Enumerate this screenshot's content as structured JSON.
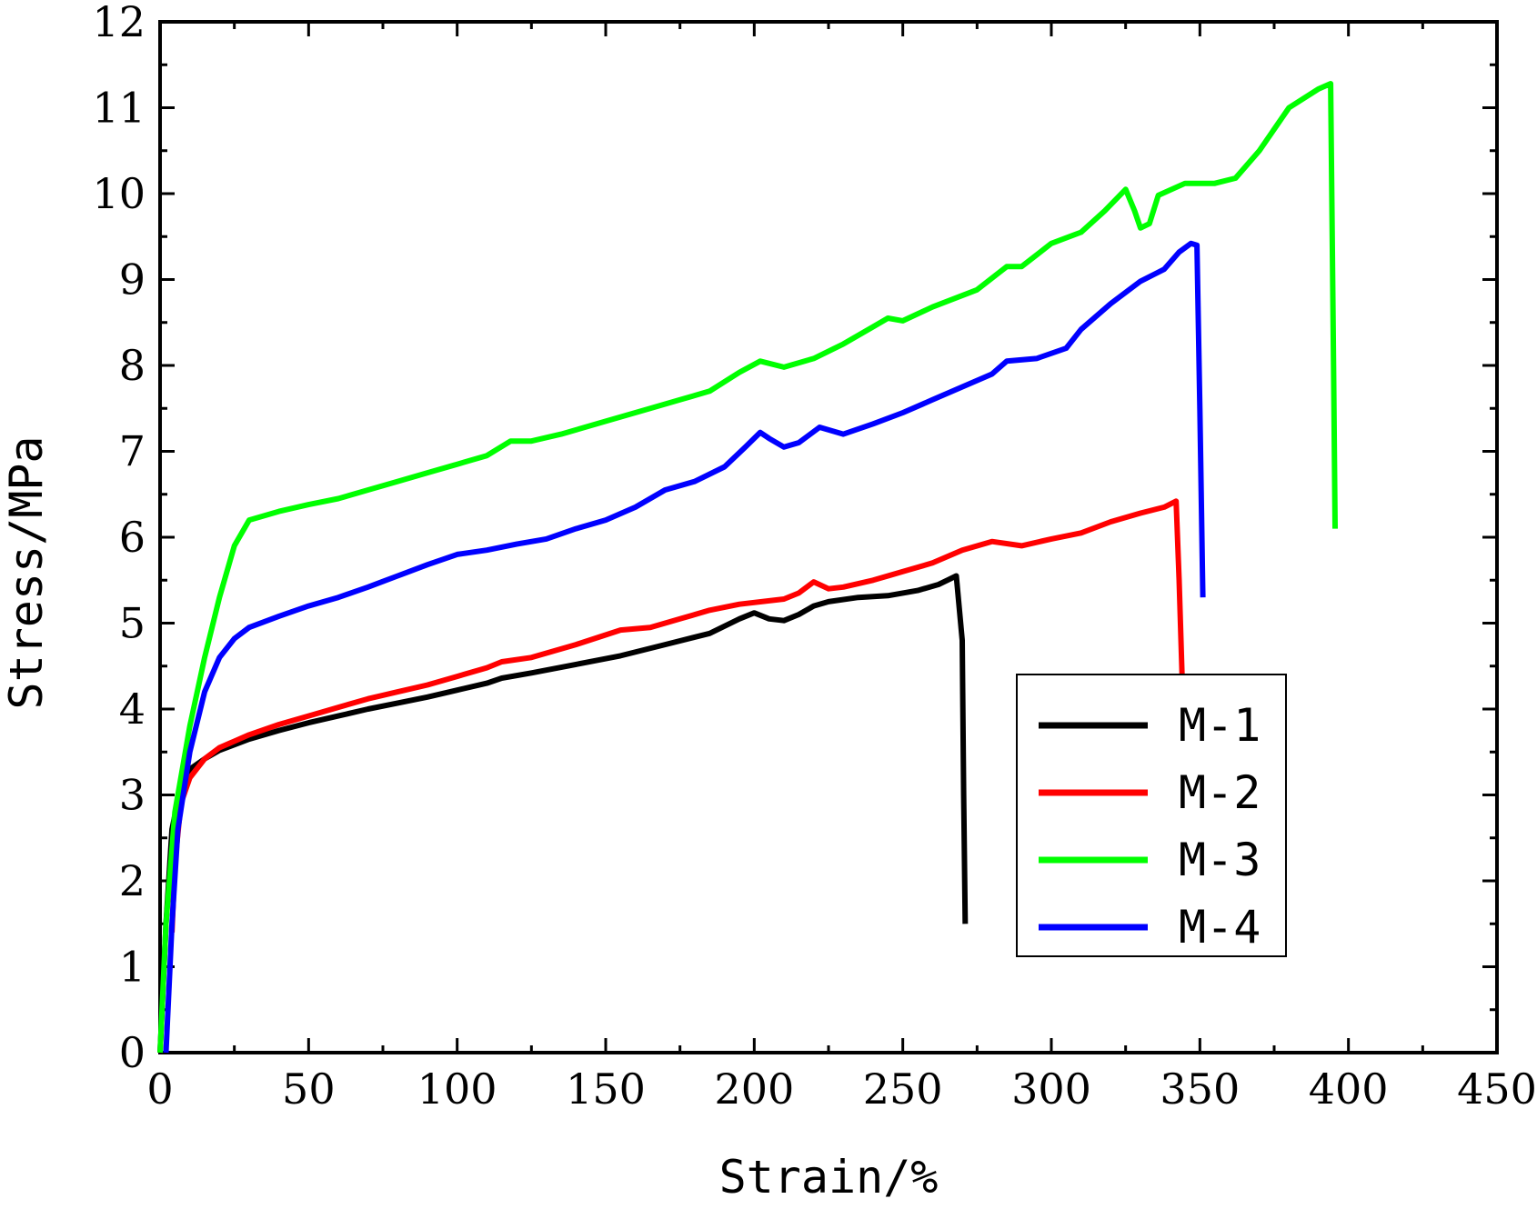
{
  "chart_data": {
    "type": "line",
    "title": "",
    "xlabel": "Strain/%",
    "ylabel": "Stress/MPa",
    "xlim": [
      0,
      450
    ],
    "ylim": [
      0,
      12
    ],
    "x_ticks": [
      "0",
      "50",
      "100",
      "150",
      "200",
      "250",
      "300",
      "350",
      "400",
      "450"
    ],
    "y_ticks": [
      "0",
      "1",
      "2",
      "3",
      "4",
      "5",
      "6",
      "7",
      "8",
      "9",
      "10",
      "11",
      "12"
    ],
    "grid": false,
    "legend_position": "bottom-right",
    "series": [
      {
        "name": "M-1",
        "color": "#000000",
        "points": [
          [
            0,
            0
          ],
          [
            2,
            1.5
          ],
          [
            4,
            2.6
          ],
          [
            7,
            3.1
          ],
          [
            10,
            3.3
          ],
          [
            15,
            3.42
          ],
          [
            20,
            3.52
          ],
          [
            30,
            3.65
          ],
          [
            40,
            3.75
          ],
          [
            50,
            3.84
          ],
          [
            60,
            3.92
          ],
          [
            70,
            4.0
          ],
          [
            80,
            4.07
          ],
          [
            90,
            4.14
          ],
          [
            100,
            4.22
          ],
          [
            110,
            4.3
          ],
          [
            115,
            4.36
          ],
          [
            125,
            4.42
          ],
          [
            140,
            4.52
          ],
          [
            155,
            4.62
          ],
          [
            170,
            4.75
          ],
          [
            185,
            4.88
          ],
          [
            195,
            5.05
          ],
          [
            200,
            5.12
          ],
          [
            205,
            5.05
          ],
          [
            210,
            5.03
          ],
          [
            215,
            5.1
          ],
          [
            220,
            5.2
          ],
          [
            225,
            5.25
          ],
          [
            235,
            5.3
          ],
          [
            245,
            5.32
          ],
          [
            255,
            5.38
          ],
          [
            262,
            5.45
          ],
          [
            268,
            5.55
          ],
          [
            270,
            4.8
          ],
          [
            270.5,
            3.0
          ],
          [
            271,
            1.5
          ]
        ]
      },
      {
        "name": "M-2",
        "color": "#ff0000",
        "points": [
          [
            4,
            1.4
          ],
          [
            5,
            2.2
          ],
          [
            7,
            2.9
          ],
          [
            10,
            3.2
          ],
          [
            15,
            3.42
          ],
          [
            20,
            3.55
          ],
          [
            30,
            3.7
          ],
          [
            40,
            3.82
          ],
          [
            50,
            3.92
          ],
          [
            60,
            4.02
          ],
          [
            70,
            4.12
          ],
          [
            80,
            4.2
          ],
          [
            90,
            4.28
          ],
          [
            100,
            4.38
          ],
          [
            110,
            4.48
          ],
          [
            115,
            4.55
          ],
          [
            125,
            4.6
          ],
          [
            140,
            4.75
          ],
          [
            155,
            4.92
          ],
          [
            165,
            4.95
          ],
          [
            175,
            5.05
          ],
          [
            185,
            5.15
          ],
          [
            195,
            5.22
          ],
          [
            210,
            5.28
          ],
          [
            215,
            5.35
          ],
          [
            220,
            5.48
          ],
          [
            225,
            5.4
          ],
          [
            230,
            5.42
          ],
          [
            240,
            5.5
          ],
          [
            250,
            5.6
          ],
          [
            260,
            5.7
          ],
          [
            270,
            5.85
          ],
          [
            280,
            5.95
          ],
          [
            290,
            5.9
          ],
          [
            300,
            5.98
          ],
          [
            310,
            6.05
          ],
          [
            320,
            6.18
          ],
          [
            330,
            6.28
          ],
          [
            338,
            6.35
          ],
          [
            342,
            6.42
          ],
          [
            343,
            5.5
          ],
          [
            344,
            4.4
          ]
        ]
      },
      {
        "name": "M-3",
        "color": "#00ff00",
        "points": [
          [
            0,
            0
          ],
          [
            2,
            1.5
          ],
          [
            5,
            2.8
          ],
          [
            10,
            3.8
          ],
          [
            15,
            4.6
          ],
          [
            20,
            5.3
          ],
          [
            25,
            5.9
          ],
          [
            30,
            6.2
          ],
          [
            40,
            6.3
          ],
          [
            50,
            6.38
          ],
          [
            60,
            6.45
          ],
          [
            70,
            6.55
          ],
          [
            80,
            6.65
          ],
          [
            90,
            6.75
          ],
          [
            100,
            6.85
          ],
          [
            110,
            6.95
          ],
          [
            118,
            7.12
          ],
          [
            125,
            7.12
          ],
          [
            135,
            7.2
          ],
          [
            150,
            7.35
          ],
          [
            165,
            7.5
          ],
          [
            175,
            7.6
          ],
          [
            185,
            7.7
          ],
          [
            195,
            7.92
          ],
          [
            202,
            8.05
          ],
          [
            210,
            7.98
          ],
          [
            220,
            8.08
          ],
          [
            230,
            8.25
          ],
          [
            240,
            8.45
          ],
          [
            245,
            8.55
          ],
          [
            250,
            8.52
          ],
          [
            260,
            8.68
          ],
          [
            275,
            8.88
          ],
          [
            285,
            9.15
          ],
          [
            290,
            9.15
          ],
          [
            300,
            9.42
          ],
          [
            310,
            9.55
          ],
          [
            318,
            9.8
          ],
          [
            325,
            10.05
          ],
          [
            328,
            9.8
          ],
          [
            330,
            9.6
          ],
          [
            333,
            9.65
          ],
          [
            336,
            9.98
          ],
          [
            345,
            10.12
          ],
          [
            355,
            10.12
          ],
          [
            362,
            10.18
          ],
          [
            370,
            10.5
          ],
          [
            380,
            11.0
          ],
          [
            390,
            11.22
          ],
          [
            394,
            11.28
          ],
          [
            395,
            8.0
          ],
          [
            395.5,
            6.1
          ]
        ]
      },
      {
        "name": "M-4",
        "color": "#0000ff",
        "points": [
          [
            2,
            0
          ],
          [
            4,
            1.5
          ],
          [
            6,
            2.6
          ],
          [
            10,
            3.5
          ],
          [
            15,
            4.2
          ],
          [
            20,
            4.6
          ],
          [
            25,
            4.82
          ],
          [
            30,
            4.95
          ],
          [
            40,
            5.08
          ],
          [
            50,
            5.2
          ],
          [
            60,
            5.3
          ],
          [
            70,
            5.42
          ],
          [
            80,
            5.55
          ],
          [
            90,
            5.68
          ],
          [
            100,
            5.8
          ],
          [
            110,
            5.85
          ],
          [
            120,
            5.92
          ],
          [
            130,
            5.98
          ],
          [
            140,
            6.1
          ],
          [
            150,
            6.2
          ],
          [
            160,
            6.35
          ],
          [
            170,
            6.55
          ],
          [
            180,
            6.65
          ],
          [
            190,
            6.82
          ],
          [
            197,
            7.05
          ],
          [
            202,
            7.22
          ],
          [
            205,
            7.15
          ],
          [
            210,
            7.05
          ],
          [
            215,
            7.1
          ],
          [
            222,
            7.28
          ],
          [
            230,
            7.2
          ],
          [
            240,
            7.32
          ],
          [
            250,
            7.45
          ],
          [
            260,
            7.6
          ],
          [
            270,
            7.75
          ],
          [
            280,
            7.9
          ],
          [
            285,
            8.05
          ],
          [
            295,
            8.08
          ],
          [
            305,
            8.2
          ],
          [
            310,
            8.42
          ],
          [
            320,
            8.72
          ],
          [
            330,
            8.98
          ],
          [
            338,
            9.12
          ],
          [
            343,
            9.32
          ],
          [
            347,
            9.42
          ],
          [
            349,
            9.4
          ],
          [
            350,
            7.5
          ],
          [
            351,
            5.3
          ]
        ]
      }
    ]
  }
}
